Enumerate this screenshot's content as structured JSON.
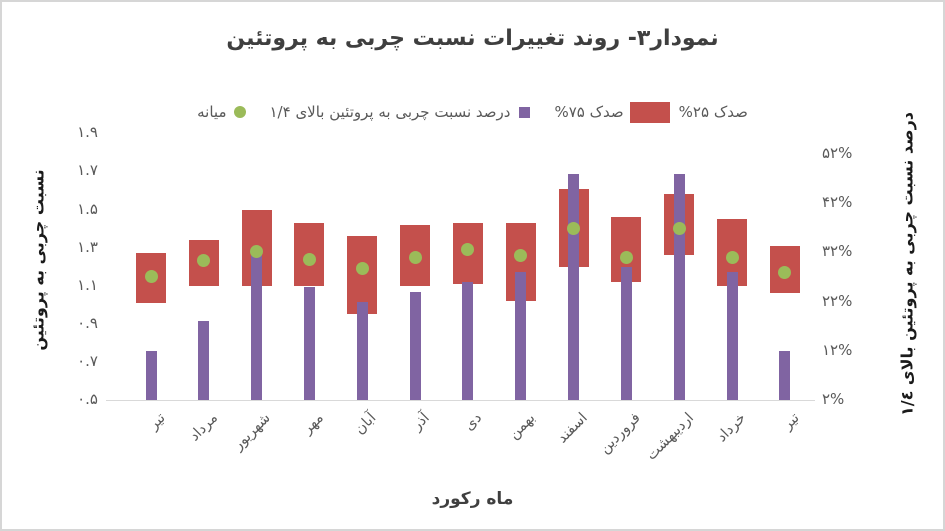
{
  "frame": {
    "background": "#ffffff",
    "border_color": "#d6d6d6"
  },
  "title": {
    "text": "نمودار۳- روند تغییرات نسبت چربی به پروتئین",
    "color": "#3f3f3f"
  },
  "legend": {
    "text_color": "#595959",
    "items": [
      {
        "label": "میانه",
        "marker": "circle",
        "color": "#9bbb59"
      },
      {
        "label": "درصد نسبت چربی به پروتئین بالای ۱/۴",
        "marker": "square",
        "color": "#8064a2"
      },
      {
        "label": "صدک ۷۵%",
        "marker": "rect",
        "color": "#c4504c"
      },
      {
        "label": "صدک ۲۵%",
        "marker": "none",
        "color": ""
      }
    ]
  },
  "left_axis": {
    "title": "نسبت چربی به پروتئین",
    "min": 0.5,
    "max": 1.9,
    "step": 0.2,
    "ticks": [
      {
        "label": "۱.۹",
        "value": 1.9
      },
      {
        "label": "۱.۷",
        "value": 1.7
      },
      {
        "label": "۱.۵",
        "value": 1.5
      },
      {
        "label": "۱.۳",
        "value": 1.3
      },
      {
        "label": "۱.۱",
        "value": 1.1
      },
      {
        "label": "۰.۹",
        "value": 0.9
      },
      {
        "label": "۰.۷",
        "value": 0.7
      },
      {
        "label": "۰.۵",
        "value": 0.5
      }
    ]
  },
  "right_axis": {
    "title": "درصد نسبت چربی به پروتئین بالای ۱/٤",
    "min": 2,
    "max": 52,
    "step": 10,
    "ticks": [
      {
        "label": "۵۲%",
        "value": 52
      },
      {
        "label": "۴۲%",
        "value": 42
      },
      {
        "label": "۳۲%",
        "value": 32
      },
      {
        "label": "۲۲%",
        "value": 22
      },
      {
        "label": "۱۲%",
        "value": 12
      },
      {
        "label": "۲%",
        "value": 2
      }
    ]
  },
  "x_axis": {
    "title": "ماه رکورد"
  },
  "colors": {
    "box": "#c4504c",
    "pct_bar": "#8064a2",
    "median": "#9bbb59",
    "axis_line": "#d9d9d9"
  },
  "chart_data": {
    "type": "bar",
    "title": "نمودار۳- روند تغییرات نسبت چربی به پروتئین",
    "xlabel": "ماه رکورد",
    "ylabel_left": "نسبت چربی به پروتئین",
    "ylabel_right": "درصد نسبت چربی به پروتئین بالای ۱/٤",
    "ylim_left": [
      0.5,
      1.9
    ],
    "ylim_right": [
      2,
      52
    ],
    "grid": false,
    "legend_position": "top",
    "categories": [
      "تیر",
      "مرداد",
      "شهریور",
      "مهر",
      "آبان",
      "آذر",
      "دی",
      "بهمن",
      "اسفند",
      "فروردین",
      "اردیبهشت",
      "خرداد",
      "تیر"
    ],
    "series": [
      {
        "name": "صدک ۲۵%",
        "axis": "left",
        "values": [
          1.01,
          1.1,
          1.1,
          1.1,
          0.95,
          1.1,
          1.11,
          1.02,
          1.2,
          1.12,
          1.26,
          1.1,
          1.06
        ]
      },
      {
        "name": "صدک ۷۵%",
        "axis": "left",
        "values": [
          1.27,
          1.34,
          1.5,
          1.43,
          1.36,
          1.42,
          1.43,
          1.43,
          1.61,
          1.46,
          1.58,
          1.45,
          1.31
        ]
      },
      {
        "name": "میانه",
        "axis": "left",
        "values": [
          1.15,
          1.23,
          1.28,
          1.24,
          1.19,
          1.25,
          1.29,
          1.26,
          1.4,
          1.25,
          1.4,
          1.25,
          1.17
        ]
      },
      {
        "name": "درصد نسبت چربی به پروتئین بالای ۱/۴",
        "axis": "right",
        "values": [
          12,
          18,
          32,
          25,
          22,
          24,
          26,
          28,
          48,
          29,
          48,
          28,
          12
        ]
      }
    ]
  }
}
